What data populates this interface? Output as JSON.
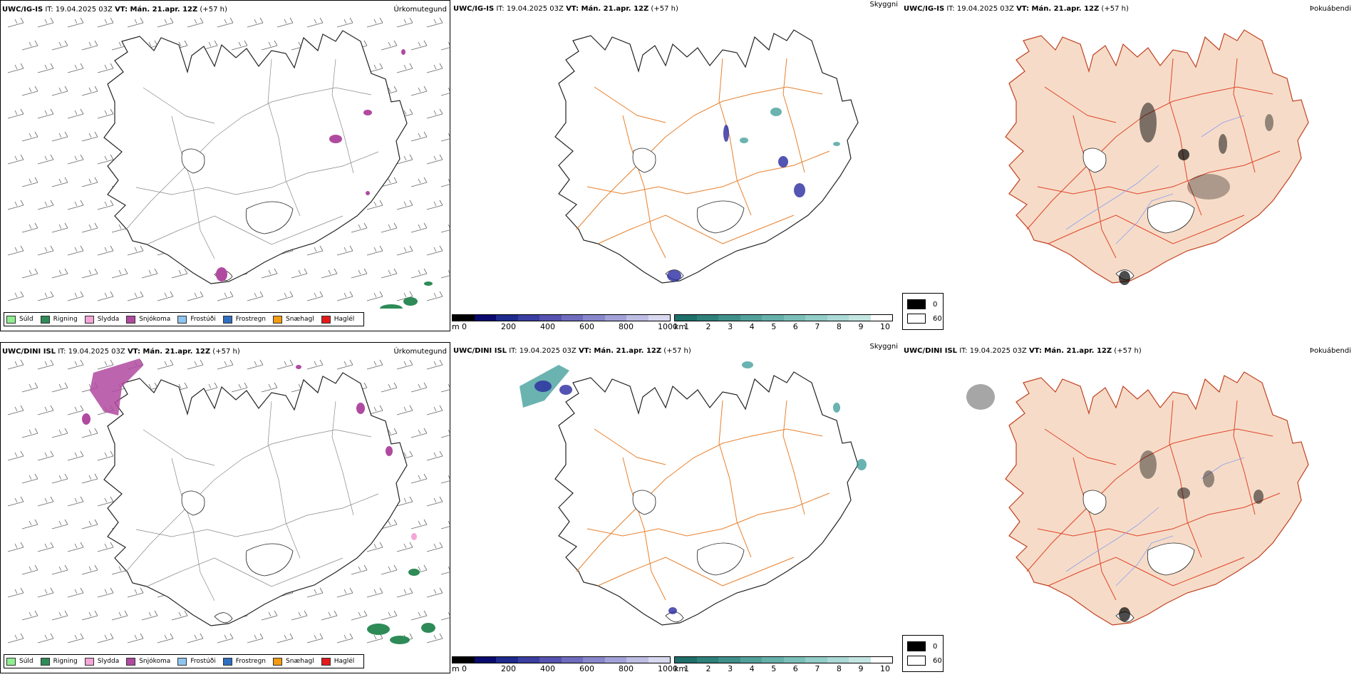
{
  "rows": [
    {
      "model": "UWC/IG-IS",
      "it_label": "IT: 19.04.2025 03Z",
      "vt_label": "VT: Mán. 21.apr. 12Z",
      "lead": "(+57 h)",
      "precip_title": "Úrkomutegund",
      "vis_title": "Skyggni",
      "dew_title": "Þokuábendi"
    },
    {
      "model": "UWC/DINI ISL",
      "it_label": "IT: 19.04.2025 03Z",
      "vt_label": "VT: Mán. 21.apr. 12Z",
      "lead": "(+57 h)",
      "precip_title": "Úrkomutegund",
      "vis_title": "Skyggni",
      "dew_title": "Þokuábendi"
    }
  ],
  "precip_legend": [
    {
      "label": "Súld",
      "color": "#90ee90"
    },
    {
      "label": "Rigning",
      "color": "#2e8b57"
    },
    {
      "label": "Slydda",
      "color": "#f4a6d7"
    },
    {
      "label": "Snjókoma",
      "color": "#b04aa0"
    },
    {
      "label": "Frostúði",
      "color": "#8ec5f0"
    },
    {
      "label": "Frostregn",
      "color": "#2f6fc0"
    },
    {
      "label": "Snæhagl",
      "color": "#f39c12"
    },
    {
      "label": "Haglél",
      "color": "#e31a1c"
    }
  ],
  "ceiling_scale": {
    "unit": "m",
    "ticks": [
      "0",
      "200",
      "400",
      "600",
      "800",
      "1000"
    ],
    "colors": [
      "#000000",
      "#0a0a6e",
      "#1e2a8c",
      "#3a3ea0",
      "#5552b0",
      "#6f6cbe",
      "#8987cc",
      "#a3a2d8",
      "#bebde4",
      "#d8d8ef"
    ]
  },
  "visibility_scale": {
    "unit": "km",
    "ticks": [
      "1",
      "2",
      "3",
      "4",
      "5",
      "6",
      "7",
      "8",
      "9",
      "10"
    ],
    "colors": [
      "#1f6f6a",
      "#2e807a",
      "#3f908a",
      "#52a09a",
      "#66b0aa",
      "#7cbfb9",
      "#93cdc8",
      "#abdad6",
      "#c4e6e3",
      "#ffffff"
    ]
  },
  "dew_legend": {
    "low": "0",
    "high": "60"
  },
  "colors": {
    "land_fill": "#f6dcc8",
    "roads_orange": "#e8802c",
    "roads_red": "#e0442a",
    "rivers": "#8a9ff0",
    "coast": "#222222",
    "wind_barb": "#555555",
    "snow": "#b04aa0",
    "rain": "#2e8b57",
    "low_cloud": "#2a2aa0",
    "low_vis": "#3a9a95"
  }
}
